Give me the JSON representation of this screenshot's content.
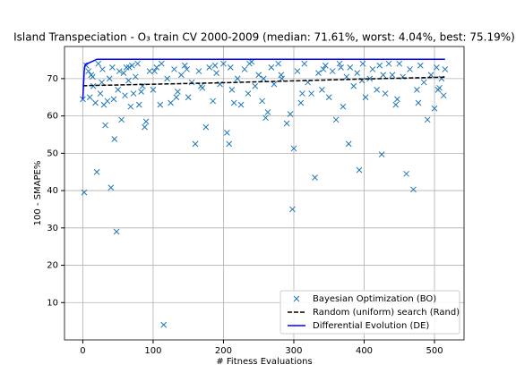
{
  "chart_data": {
    "type": "scatter",
    "title": "Island Transpeciation - O₃ train CV 2000-2009 (median: 71.61%, worst: 4.04%, best: 75.19%)",
    "xlabel": "# Fitness Evaluations",
    "ylabel": "100 - SMAPE%",
    "xlim": [
      -26,
      542
    ],
    "ylim": [
      0,
      78.6
    ],
    "xticks": [
      0,
      100,
      200,
      300,
      400,
      500
    ],
    "yticks": [
      10,
      20,
      30,
      40,
      50,
      60,
      70
    ],
    "grid": true,
    "legend": "lower right",
    "series": [
      {
        "name": "Bayesian Optimization (BO)",
        "color": "#1f77b4",
        "marker": "x",
        "x": [
          0,
          2,
          5,
          8,
          10,
          12,
          15,
          18,
          20,
          22,
          25,
          28,
          30,
          32,
          35,
          38,
          40,
          42,
          45,
          48,
          50,
          52,
          55,
          58,
          60,
          62,
          65,
          68,
          70,
          72,
          75,
          78,
          80,
          85,
          88,
          90,
          95,
          100,
          105,
          110,
          112,
          115,
          120,
          125,
          130,
          135,
          140,
          145,
          150,
          155,
          160,
          165,
          170,
          175,
          180,
          185,
          190,
          195,
          200,
          205,
          208,
          210,
          215,
          220,
          225,
          230,
          235,
          240,
          245,
          250,
          255,
          260,
          263,
          268,
          272,
          278,
          283,
          290,
          295,
          298,
          300,
          305,
          310,
          315,
          320,
          325,
          330,
          335,
          340,
          345,
          350,
          355,
          360,
          365,
          370,
          375,
          378,
          380,
          385,
          390,
          393,
          398,
          402,
          408,
          412,
          418,
          422,
          425,
          430,
          435,
          440,
          445,
          450,
          455,
          460,
          465,
          470,
          475,
          480,
          485,
          490,
          495,
          500,
          503,
          507,
          510,
          513,
          515,
          14,
          27,
          44,
          66,
          83,
          102,
          133,
          148,
          168,
          188,
          212,
          237,
          257,
          282,
          312,
          342,
          367,
          397,
          427,
          447,
          477,
          505
        ],
        "values": [
          64.5,
          39.5,
          73.5,
          72,
          65,
          71,
          68,
          63.5,
          45,
          74,
          66,
          72.5,
          63,
          57.5,
          64,
          70,
          40.8,
          73,
          53.8,
          29,
          67,
          72,
          59,
          71.5,
          65.5,
          73,
          69.5,
          62.5,
          73.5,
          66,
          70.5,
          74,
          63,
          68,
          57,
          58.5,
          72,
          67,
          73,
          63,
          74,
          4.04,
          70,
          63.5,
          72.5,
          66.5,
          71,
          73.5,
          65,
          69,
          52.5,
          72,
          67.5,
          57,
          73,
          64,
          71.5,
          68.5,
          74,
          55.5,
          52.5,
          73,
          63.5,
          70,
          63,
          72.5,
          66,
          74.5,
          68,
          71,
          64,
          59.5,
          61,
          73,
          68.5,
          74,
          70,
          58,
          60.5,
          35,
          51.3,
          72,
          63.5,
          74,
          69,
          66,
          43.5,
          71.5,
          67,
          73.5,
          65,
          72,
          59,
          74,
          62.5,
          70.5,
          52.5,
          73,
          68,
          71.5,
          45.5,
          74,
          65,
          70,
          72.5,
          67,
          73.5,
          49.7,
          66,
          74,
          71,
          63,
          74,
          70.5,
          44.5,
          72.5,
          40.3,
          67,
          73.5,
          69,
          59,
          71,
          62,
          73,
          67.5,
          70,
          65.5,
          72.5,
          70.5,
          69,
          64.5,
          73,
          66.5,
          72,
          65,
          72.5,
          68,
          73.5,
          67,
          74,
          70,
          71,
          66,
          72.5,
          73,
          69.5,
          71,
          64.5,
          63.5,
          67
        ]
      },
      {
        "name": "Random (uniform) search (Rand)",
        "color": "#000000",
        "marker": "dashed",
        "x": [
          0,
          50,
          100,
          200,
          300,
          400,
          515
        ],
        "values": [
          68.1,
          68.3,
          68.5,
          68.9,
          69.4,
          69.9,
          70.4
        ]
      },
      {
        "name": "Differential Evolution (DE)",
        "color": "#0000ff",
        "marker": "solid",
        "x": [
          0,
          1,
          2,
          3,
          5,
          10,
          20,
          100,
          515
        ],
        "values": [
          64.5,
          68,
          72,
          73.5,
          74,
          74.3,
          75.19,
          75.19,
          75.19
        ]
      }
    ]
  }
}
